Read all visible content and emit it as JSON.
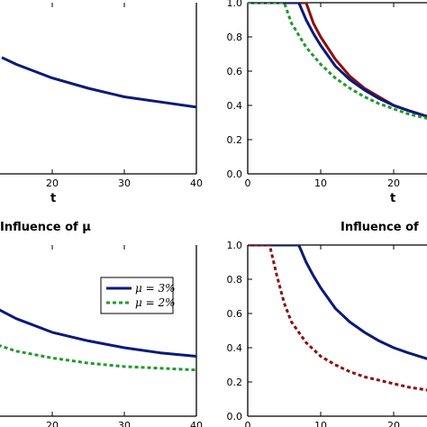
{
  "colors": {
    "navy": "#0a1a78",
    "green": "#22992e",
    "darkred": "#8b1010",
    "axis": "#000000"
  },
  "chart_data": [
    {
      "type": "line",
      "panel": "top-left",
      "xlabel": "t",
      "xlim": [
        10,
        40
      ],
      "xticks": [
        20,
        30,
        40
      ],
      "series": [
        {
          "name": "",
          "style": "solid",
          "color": "#0a1a78",
          "x": [
            13,
            15,
            20,
            25,
            30,
            35,
            40
          ],
          "y": [
            0.68,
            0.64,
            0.56,
            0.5,
            0.45,
            0.42,
            0.39
          ]
        }
      ]
    },
    {
      "type": "line",
      "panel": "top-right",
      "xlabel": "t",
      "xlim": [
        0,
        25
      ],
      "ylim": [
        0,
        1.0
      ],
      "xticks": [
        0,
        10,
        20
      ],
      "yticks": [
        "0.0",
        "0.2",
        "0.4",
        "0.6",
        "0.8",
        "1.0"
      ],
      "series": [
        {
          "name": "",
          "style": "solid",
          "color": "#8b1010",
          "x": [
            0,
            8,
            9,
            10,
            12,
            14,
            16,
            18,
            20,
            22,
            25
          ],
          "y": [
            1.0,
            1.0,
            0.88,
            0.8,
            0.67,
            0.57,
            0.5,
            0.45,
            0.4,
            0.37,
            0.33
          ]
        },
        {
          "name": "",
          "style": "solid",
          "color": "#0a1a78",
          "x": [
            0,
            7,
            8,
            9,
            10,
            12,
            14,
            16,
            18,
            20,
            22,
            25
          ],
          "y": [
            1.0,
            1.0,
            0.9,
            0.82,
            0.75,
            0.63,
            0.55,
            0.49,
            0.44,
            0.4,
            0.37,
            0.33
          ]
        },
        {
          "name": "",
          "style": "dashed",
          "color": "#22992e",
          "x": [
            0,
            5,
            6,
            8,
            10,
            12,
            14,
            16,
            18,
            20,
            22,
            25
          ],
          "y": [
            1.0,
            1.0,
            0.88,
            0.74,
            0.64,
            0.56,
            0.5,
            0.45,
            0.41,
            0.38,
            0.35,
            0.32
          ]
        }
      ]
    },
    {
      "type": "line",
      "panel": "bottom-left",
      "title": "Influence of μ",
      "xlim": [
        10,
        40
      ],
      "xticks": [
        20,
        30,
        40
      ],
      "legend": [
        "μ = 3%",
        "μ = 2%"
      ],
      "series": [
        {
          "name": "μ = 3%",
          "style": "solid",
          "color": "#0a1a78",
          "x": [
            10,
            15,
            20,
            25,
            30,
            35,
            40
          ],
          "y": [
            0.68,
            0.57,
            0.49,
            0.44,
            0.4,
            0.37,
            0.35
          ]
        },
        {
          "name": "μ = 2%",
          "style": "dashed",
          "color": "#22992e",
          "x": [
            10,
            15,
            20,
            25,
            30,
            35,
            40
          ],
          "y": [
            0.45,
            0.38,
            0.34,
            0.31,
            0.29,
            0.28,
            0.27
          ]
        }
      ]
    },
    {
      "type": "line",
      "panel": "bottom-right",
      "title": "Influence of",
      "xlim": [
        0,
        25
      ],
      "ylim": [
        0,
        1.0
      ],
      "xticks": [
        0,
        10,
        20
      ],
      "yticks": [
        "0.0",
        "0.2",
        "0.4",
        "0.6",
        "0.8",
        "1.0"
      ],
      "series": [
        {
          "name": "",
          "style": "solid",
          "color": "#0a1a78",
          "x": [
            0,
            7,
            8,
            9,
            10,
            12,
            14,
            16,
            18,
            20,
            22,
            25
          ],
          "y": [
            1.0,
            1.0,
            0.9,
            0.82,
            0.75,
            0.63,
            0.55,
            0.49,
            0.44,
            0.4,
            0.37,
            0.33
          ]
        },
        {
          "name": "",
          "style": "dashed",
          "color": "#8b1010",
          "x": [
            0,
            3,
            4,
            5,
            6,
            8,
            10,
            12,
            14,
            16,
            18,
            20,
            22,
            25
          ],
          "y": [
            1.0,
            1.0,
            0.82,
            0.66,
            0.55,
            0.43,
            0.35,
            0.3,
            0.26,
            0.23,
            0.21,
            0.19,
            0.17,
            0.15
          ]
        }
      ]
    }
  ]
}
